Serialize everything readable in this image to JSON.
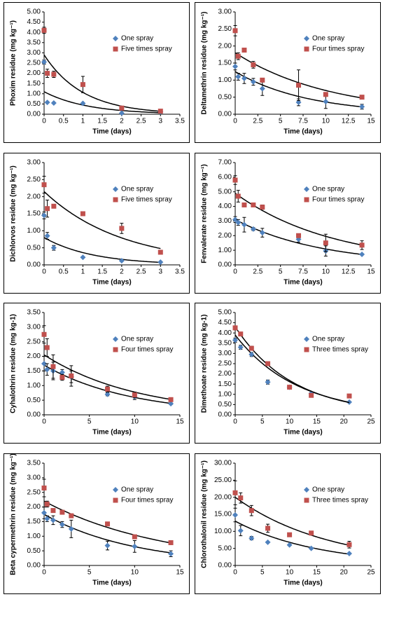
{
  "chart_data": [
    {
      "type": "scatter",
      "xlabel": "Time (days)",
      "ylabel": "Phoxim residue (mg kg⁻¹)",
      "xlim": [
        0,
        3.5
      ],
      "xticks": [
        0,
        0.5,
        1,
        1.5,
        2,
        2.5,
        3,
        3.5
      ],
      "ylim": [
        0,
        5
      ],
      "yticks": [
        {
          "value": 0,
          "label": "0.00"
        },
        {
          "value": 0.5,
          "label": "0.50"
        },
        {
          "value": 1,
          "label": "1.00"
        },
        {
          "value": 1.5,
          "label": "1.50"
        },
        {
          "value": 2,
          "label": "2.00"
        },
        {
          "value": 2.5,
          "label": "2.50"
        },
        {
          "value": 3,
          "label": "3.00"
        },
        {
          "value": 3.5,
          "label": "3.50"
        },
        {
          "value": 4,
          "label": "4.00"
        },
        {
          "value": 4.5,
          "label": "4.50"
        },
        {
          "value": 5,
          "label": "5.00"
        }
      ],
      "series": [
        {
          "name": "One spray",
          "color": "#4f81bd",
          "marker": "diamond",
          "x": [
            0,
            0.083,
            0.25,
            1,
            2,
            3
          ],
          "values": [
            2.55,
            0.58,
            0.55,
            0.53,
            0.05,
            0.12
          ],
          "errors": [
            0.1,
            null,
            null,
            null,
            null,
            null
          ],
          "fit": {
            "a": 1.1,
            "k": 0.9
          }
        },
        {
          "name": "Five times spray",
          "color": "#c0504d",
          "marker": "square",
          "x": [
            0,
            0.083,
            0.25,
            1,
            2,
            3
          ],
          "values": [
            4.1,
            2.0,
            1.95,
            1.45,
            0.3,
            0.15
          ],
          "errors": [
            0.15,
            0.2,
            0.15,
            0.4,
            0.05,
            0.05
          ],
          "fit": {
            "a": 2.9,
            "k": 1.0
          }
        }
      ]
    },
    {
      "type": "scatter",
      "xlabel": "Time (days)",
      "ylabel": "Deltamethrin residue (mg kg⁻¹)",
      "xlim": [
        0,
        15
      ],
      "xticks": [
        0,
        2.5,
        5,
        7.5,
        10,
        12.5,
        15
      ],
      "ylim": [
        0,
        3
      ],
      "yticks": [
        {
          "value": 0,
          "label": "0.00"
        },
        {
          "value": 0.5,
          "label": "0.50"
        },
        {
          "value": 1,
          "label": "1.00"
        },
        {
          "value": 1.5,
          "label": "1.50"
        },
        {
          "value": 2,
          "label": "2.00"
        },
        {
          "value": 2.5,
          "label": "2.50"
        },
        {
          "value": 3,
          "label": "3.00"
        }
      ],
      "series": [
        {
          "name": "One spray",
          "color": "#4f81bd",
          "marker": "diamond",
          "x": [
            0,
            0.33,
            1,
            2,
            3,
            7,
            10,
            14
          ],
          "values": [
            1.4,
            1.1,
            1.05,
            0.95,
            0.75,
            0.35,
            0.37,
            0.22
          ],
          "errors": [
            0.1,
            0.1,
            0.15,
            0.1,
            0.2,
            0.1,
            0.2,
            0.07
          ],
          "fit": {
            "a": 1.25,
            "k": 0.125
          }
        },
        {
          "name": "Four times spray",
          "color": "#c0504d",
          "marker": "square",
          "x": [
            0,
            0.33,
            1,
            2,
            3,
            7,
            10,
            14
          ],
          "values": [
            2.45,
            1.7,
            1.88,
            1.45,
            1.0,
            0.85,
            0.58,
            0.5
          ],
          "errors": [
            0.15,
            0.1,
            null,
            0.1,
            null,
            0.45,
            null,
            null
          ],
          "fit": {
            "a": 1.8,
            "k": 0.095
          }
        }
      ]
    },
    {
      "type": "scatter",
      "xlabel": "Time (days)",
      "ylabel": "Dichlorvos residue (mg kg⁻¹)",
      "xlim": [
        0,
        3.5
      ],
      "xticks": [
        0,
        0.5,
        1,
        1.5,
        2,
        2.5,
        3,
        3.5
      ],
      "ylim": [
        0,
        3
      ],
      "yticks": [
        {
          "value": 0,
          "label": "0.00"
        },
        {
          "value": 0.5,
          "label": "0.50"
        },
        {
          "value": 1,
          "label": "1.00"
        },
        {
          "value": 1.5,
          "label": "1.50"
        },
        {
          "value": 2,
          "label": "2.00"
        },
        {
          "value": 2.5,
          "label": "2.50"
        },
        {
          "value": 3,
          "label": "3.00"
        }
      ],
      "series": [
        {
          "name": "One spray",
          "color": "#4f81bd",
          "marker": "diamond",
          "x": [
            0,
            0.083,
            0.25,
            1,
            2,
            3
          ],
          "values": [
            1.45,
            0.85,
            0.5,
            0.22,
            0.12,
            0.08
          ],
          "errors": [
            0.1,
            0.1,
            0.07,
            null,
            null,
            null
          ],
          "fit": {
            "a": 0.8,
            "k": 0.8
          }
        },
        {
          "name": "Five times spray",
          "color": "#c0504d",
          "marker": "square",
          "x": [
            0,
            0.083,
            0.25,
            1,
            2,
            3
          ],
          "values": [
            2.35,
            1.65,
            1.72,
            1.5,
            1.07,
            0.37
          ],
          "errors": [
            0.25,
            0.25,
            0.05,
            null,
            0.15,
            0.05
          ],
          "fit": {
            "a": 2.15,
            "k": 0.5
          }
        }
      ]
    },
    {
      "type": "scatter",
      "xlabel": "Time (days)",
      "ylabel": "Fenvalerate residue (mg kg⁻¹)",
      "xlim": [
        0,
        15
      ],
      "xticks": [
        0,
        2.5,
        5,
        7.5,
        10,
        12.5,
        15
      ],
      "ylim": [
        0,
        7
      ],
      "yticks": [
        {
          "value": 0,
          "label": "0.00"
        },
        {
          "value": 1,
          "label": "1.00"
        },
        {
          "value": 2,
          "label": "2.00"
        },
        {
          "value": 3,
          "label": "3.00"
        },
        {
          "value": 4,
          "label": "4.00"
        },
        {
          "value": 5,
          "label": "5.00"
        },
        {
          "value": 6,
          "label": "6.00"
        },
        {
          "value": 7,
          "label": "7.00"
        }
      ],
      "series": [
        {
          "name": "One spray",
          "color": "#4f81bd",
          "marker": "diamond",
          "x": [
            0,
            0.33,
            1,
            2,
            3,
            7,
            10,
            14
          ],
          "values": [
            3.1,
            2.9,
            2.75,
            2.45,
            2.2,
            1.75,
            0.95,
            0.72
          ],
          "errors": [
            0.2,
            0.2,
            0.5,
            0.1,
            0.3,
            0.2,
            0.35,
            0.05
          ],
          "fit": {
            "a": 3.1,
            "k": 0.105
          }
        },
        {
          "name": "Four times spray",
          "color": "#c0504d",
          "marker": "square",
          "x": [
            0,
            0.33,
            1,
            2,
            3,
            7,
            10,
            14
          ],
          "values": [
            5.8,
            4.7,
            4.1,
            4.1,
            3.95,
            2.0,
            1.5,
            1.35
          ],
          "errors": [
            0.3,
            0.4,
            null,
            null,
            0.15,
            0.1,
            0.6,
            0.3
          ],
          "fit": {
            "a": 4.9,
            "k": 0.092
          }
        }
      ]
    },
    {
      "type": "scatter",
      "xlabel": "Time (days)",
      "ylabel": "Cyhalothrin residue (mg kg-1)",
      "xlim": [
        0,
        15
      ],
      "xticks": [
        0,
        5,
        10,
        15
      ],
      "ylim": [
        0,
        3.5
      ],
      "yticks": [
        {
          "value": 0,
          "label": "0.00"
        },
        {
          "value": 0.5,
          "label": "0.50"
        },
        {
          "value": 1,
          "label": "1.00"
        },
        {
          "value": 1.5,
          "label": "1.50"
        },
        {
          "value": 2,
          "label": "2.00"
        },
        {
          "value": 2.5,
          "label": "2.50"
        },
        {
          "value": 3,
          "label": "3.00"
        },
        {
          "value": 3.5,
          "label": "3.50"
        }
      ],
      "series": [
        {
          "name": "One spray",
          "color": "#4f81bd",
          "marker": "diamond",
          "x": [
            0,
            0.33,
            1,
            2,
            3,
            7,
            10,
            14
          ],
          "values": [
            1.75,
            1.55,
            1.5,
            1.45,
            1.3,
            0.7,
            0.62,
            0.38
          ],
          "errors": [
            0.25,
            0.2,
            0.3,
            0.1,
            0.2,
            0.05,
            0.1,
            0.03
          ],
          "fit": {
            "a": 1.7,
            "k": 0.105
          }
        },
        {
          "name": "Four times spray",
          "color": "#c0504d",
          "marker": "square",
          "x": [
            0,
            0.33,
            1,
            2,
            3,
            7,
            10,
            14
          ],
          "values": [
            2.75,
            2.3,
            1.65,
            1.28,
            1.33,
            0.88,
            0.68,
            0.52
          ],
          "errors": [
            0.3,
            0.3,
            0.4,
            0.1,
            0.35,
            0.1,
            0.1,
            0.03
          ],
          "fit": {
            "a": 2.05,
            "k": 0.097
          }
        }
      ]
    },
    {
      "type": "scatter",
      "xlabel": "Time (days)",
      "ylabel": "Dimethoate residue (mg kg-1)",
      "xlim": [
        0,
        25
      ],
      "xticks": [
        0,
        5,
        10,
        15,
        20,
        25
      ],
      "ylim": [
        0,
        5
      ],
      "yticks": [
        {
          "value": 0,
          "label": "0.00"
        },
        {
          "value": 0.5,
          "label": "0.50"
        },
        {
          "value": 1,
          "label": "1.00"
        },
        {
          "value": 1.5,
          "label": "1.50"
        },
        {
          "value": 2,
          "label": "2.00"
        },
        {
          "value": 2.5,
          "label": "2.50"
        },
        {
          "value": 3,
          "label": "3.00"
        },
        {
          "value": 3.5,
          "label": "3.50"
        },
        {
          "value": 4,
          "label": "4.00"
        },
        {
          "value": 4.5,
          "label": "4.50"
        },
        {
          "value": 5,
          "label": "5.00"
        }
      ],
      "series": [
        {
          "name": "One spray",
          "color": "#4f81bd",
          "marker": "diamond",
          "x": [
            0,
            1,
            3,
            6,
            10,
            14,
            21
          ],
          "values": [
            3.65,
            3.3,
            2.95,
            1.6,
            1.35,
            1.05,
            0.62
          ],
          "errors": [
            0.1,
            0.1,
            0.1,
            0.1,
            null,
            null,
            null
          ],
          "fit": {
            "a": 3.9,
            "k": 0.088
          }
        },
        {
          "name": "Three times spray",
          "color": "#c0504d",
          "marker": "square",
          "x": [
            0,
            1,
            3,
            6,
            10,
            14,
            21
          ],
          "values": [
            4.25,
            3.95,
            3.25,
            2.5,
            1.35,
            0.95,
            0.92
          ],
          "errors": [
            0.1,
            0.05,
            0.1,
            0.05,
            null,
            null,
            null
          ],
          "fit": {
            "a": 4.3,
            "k": 0.094
          }
        }
      ]
    },
    {
      "type": "scatter",
      "xlabel": "Time (days)",
      "ylabel": "Beta cypermethrin residue (mg kg⁻¹)",
      "xlim": [
        0,
        15
      ],
      "xticks": [
        0,
        5,
        10,
        15
      ],
      "ylim": [
        0,
        3.5
      ],
      "yticks": [
        {
          "value": 0,
          "label": "0.00"
        },
        {
          "value": 0.5,
          "label": "0.50"
        },
        {
          "value": 1,
          "label": "1.00"
        },
        {
          "value": 1.5,
          "label": "1.50"
        },
        {
          "value": 2,
          "label": "2.00"
        },
        {
          "value": 2.5,
          "label": "2.50"
        },
        {
          "value": 3,
          "label": "3.00"
        },
        {
          "value": 3.5,
          "label": "3.50"
        }
      ],
      "series": [
        {
          "name": "One spray",
          "color": "#4f81bd",
          "marker": "diamond",
          "x": [
            0,
            0.33,
            1,
            2,
            3,
            7,
            10,
            14
          ],
          "values": [
            1.8,
            1.6,
            1.55,
            1.4,
            1.25,
            0.68,
            0.65,
            0.4
          ],
          "errors": [
            0.2,
            0.1,
            0.15,
            0.1,
            0.3,
            0.15,
            0.2,
            0.1
          ],
          "fit": {
            "a": 1.75,
            "k": 0.1
          }
        },
        {
          "name": "Four times spray",
          "color": "#c0504d",
          "marker": "square",
          "x": [
            0,
            0.33,
            1,
            2,
            3,
            7,
            10,
            14
          ],
          "values": [
            2.65,
            2.1,
            1.88,
            1.82,
            1.7,
            1.42,
            0.98,
            0.78
          ],
          "errors": [
            0.3,
            0.1,
            null,
            null,
            null,
            null,
            null,
            null
          ],
          "fit": {
            "a": 2.2,
            "k": 0.075
          }
        }
      ]
    },
    {
      "type": "scatter",
      "xlabel": "Time (days)",
      "ylabel": "Chlorothalonil residue (mg kg⁻¹)",
      "xlim": [
        0,
        25
      ],
      "xticks": [
        0,
        5,
        10,
        15,
        20,
        25
      ],
      "ylim": [
        0,
        30
      ],
      "yticks": [
        {
          "value": 0,
          "label": "0.00"
        },
        {
          "value": 5,
          "label": "5.00"
        },
        {
          "value": 10,
          "label": "10.00"
        },
        {
          "value": 15,
          "label": "15.00"
        },
        {
          "value": 20,
          "label": "20.00"
        },
        {
          "value": 25,
          "label": "25.00"
        },
        {
          "value": 30,
          "label": "30.00"
        }
      ],
      "series": [
        {
          "name": "One spray",
          "color": "#4f81bd",
          "marker": "diamond",
          "x": [
            0,
            1,
            3,
            6,
            10,
            14,
            21
          ],
          "values": [
            14.8,
            10.2,
            8.0,
            6.8,
            6.0,
            5.0,
            3.5
          ],
          "errors": [
            2,
            1.5,
            0.5,
            null,
            null,
            null,
            null
          ],
          "fit": {
            "a": 13,
            "k": 0.065
          }
        },
        {
          "name": "Three times spray",
          "color": "#c0504d",
          "marker": "square",
          "x": [
            0,
            1,
            3,
            6,
            10,
            14,
            21
          ],
          "values": [
            21.3,
            19.8,
            16.1,
            10.9,
            9.0,
            9.5,
            6.1
          ],
          "errors": [
            3.5,
            1.5,
            1.5,
            1.2,
            null,
            null,
            1
          ],
          "fit": {
            "a": 20,
            "k": 0.058
          }
        }
      ]
    }
  ]
}
